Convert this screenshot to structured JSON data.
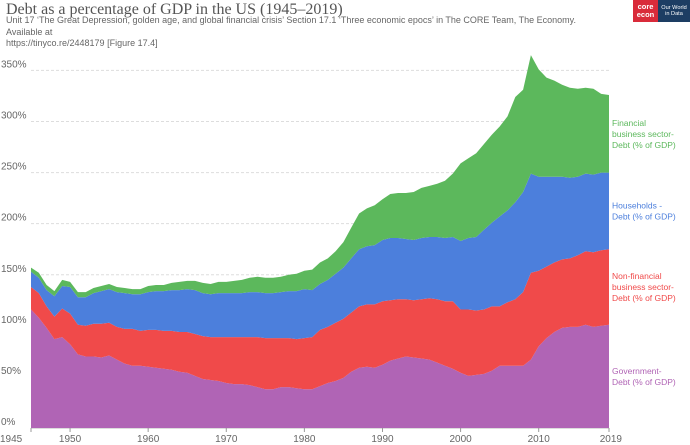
{
  "header": {
    "title": "Debt as a percentage of GDP in the US (1945–2019)",
    "subtitle_line1": "Unit 17 ‘The Great Depression, golden age, and global financial crisis’ Section 17.1 ‘Three economic epocs’ in The CORE Team, The Economy. Available at",
    "subtitle_line2": "https://tinyco.re/2448179 [Figure 17.4]"
  },
  "logo": {
    "core_top": "core",
    "core_bottom": "econ",
    "owid_line1": "Our World",
    "owid_line2": "in Data"
  },
  "chart_data": {
    "type": "area",
    "stacked": true,
    "title": "Debt as a percentage of GDP in the US (1945–2019)",
    "xlabel": "",
    "ylabel": "",
    "xlim": [
      1945,
      2019
    ],
    "ylim": [
      0,
      370
    ],
    "x_ticks": [
      1945,
      1950,
      1960,
      1970,
      1980,
      1990,
      2000,
      2010,
      2019
    ],
    "y_ticks": [
      0,
      50,
      100,
      150,
      200,
      250,
      300,
      350
    ],
    "y_tick_labels": [
      "0%",
      "50%",
      "100%",
      "150%",
      "200%",
      "250%",
      "300%",
      "350%"
    ],
    "x": [
      1945,
      1946,
      1947,
      1948,
      1949,
      1950,
      1951,
      1952,
      1953,
      1954,
      1955,
      1956,
      1957,
      1958,
      1959,
      1960,
      1961,
      1962,
      1963,
      1964,
      1965,
      1966,
      1967,
      1968,
      1969,
      1970,
      1971,
      1972,
      1973,
      1974,
      1975,
      1976,
      1977,
      1978,
      1979,
      1980,
      1981,
      1982,
      1983,
      1984,
      1985,
      1986,
      1987,
      1988,
      1989,
      1990,
      1991,
      1992,
      1993,
      1994,
      1995,
      1996,
      1997,
      1998,
      1999,
      2000,
      2001,
      2002,
      2003,
      2004,
      2005,
      2006,
      2007,
      2008,
      2009,
      2010,
      2011,
      2012,
      2013,
      2014,
      2015,
      2016,
      2017,
      2018,
      2019
    ],
    "series": [
      {
        "name": "Government-Debt (% of GDP)",
        "label_line1": "Government-",
        "label_line2": "Debt (% of GDP)",
        "color": "#b064b5",
        "values": [
          116,
          108,
          98,
          87,
          89,
          82,
          72,
          70,
          70,
          69,
          71,
          67,
          63,
          61,
          61,
          60,
          59,
          58,
          57,
          55,
          54,
          51,
          48,
          47,
          46,
          44,
          43,
          43,
          42,
          40,
          38,
          38,
          40,
          40,
          39,
          38,
          38,
          41,
          44,
          46,
          49,
          55,
          59,
          60,
          59,
          62,
          66,
          68,
          70,
          69,
          68,
          67,
          64,
          61,
          58,
          54,
          51,
          52,
          53,
          56,
          61,
          61,
          61,
          61,
          67,
          80,
          88,
          94,
          98,
          99,
          99,
          101,
          99,
          100,
          101
        ]
      },
      {
        "name": "Non-financial business sector-Debt (% of GDP)",
        "label_line1": "Non-financial",
        "label_line2": "business sector-",
        "label_line3": "Debt (% of GDP)",
        "color": "#f04a4a",
        "values": [
          22,
          24,
          21,
          22,
          28,
          30,
          29,
          30,
          32,
          33,
          32,
          32,
          34,
          36,
          34,
          36,
          37,
          37,
          38,
          39,
          40,
          41,
          42,
          42,
          43,
          45,
          46,
          46,
          47,
          49,
          50,
          50,
          48,
          48,
          48,
          50,
          51,
          55,
          55,
          57,
          58,
          58,
          60,
          61,
          62,
          62,
          59,
          58,
          56,
          56,
          58,
          60,
          62,
          63,
          66,
          62,
          65,
          63,
          63,
          63,
          58,
          62,
          65,
          72,
          85,
          74,
          70,
          68,
          67,
          67,
          70,
          72,
          73,
          74,
          74
        ]
      },
      {
        "name": "Households-Debt (% of GDP)",
        "label_line1": "Households -",
        "label_line2": "Debt (% of GDP)",
        "color": "#4c7fdc",
        "values": [
          15,
          15,
          16,
          20,
          22,
          26,
          27,
          28,
          30,
          32,
          33,
          34,
          35,
          34,
          36,
          37,
          38,
          39,
          40,
          41,
          42,
          43,
          42,
          42,
          43,
          43,
          43,
          43,
          44,
          44,
          44,
          44,
          45,
          46,
          47,
          48,
          46,
          45,
          46,
          48,
          50,
          53,
          56,
          57,
          58,
          60,
          61,
          60,
          59,
          59,
          60,
          60,
          61,
          62,
          63,
          67,
          70,
          72,
          78,
          82,
          88,
          90,
          95,
          98,
          97,
          92,
          88,
          84,
          81,
          79,
          77,
          76,
          76,
          76,
          75
        ]
      },
      {
        "name": "Financial business sector-Debt (% of GDP)",
        "label_line1": "Financial",
        "label_line2": "business sector-",
        "label_line3": "Debt (% of GDP)",
        "color": "#5cb85c",
        "values": [
          4,
          5,
          5,
          5,
          6,
          5,
          5,
          5,
          5,
          5,
          5,
          5,
          5,
          5,
          5,
          6,
          6,
          6,
          7,
          8,
          8,
          9,
          10,
          10,
          11,
          11,
          12,
          13,
          14,
          15,
          15,
          15,
          15,
          16,
          17,
          18,
          20,
          21,
          21,
          22,
          25,
          30,
          35,
          37,
          39,
          40,
          43,
          44,
          45,
          47,
          49,
          50,
          52,
          56,
          62,
          76,
          78,
          82,
          84,
          86,
          88,
          92,
          103,
          100,
          116,
          105,
          97,
          94,
          90,
          88,
          86,
          84,
          84,
          77,
          76
        ]
      }
    ]
  }
}
